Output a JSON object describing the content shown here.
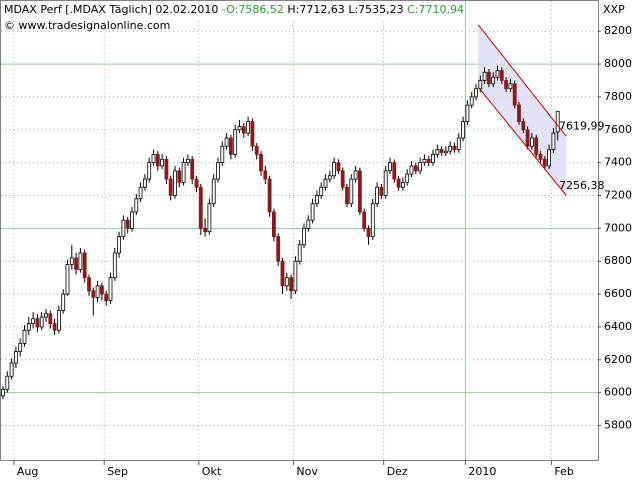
{
  "chart_data": {
    "type": "candlestick",
    "title": {
      "instrument": "MDAX Perf [.MDAX  Täglich] 02.02.2010",
      "open": "-O:7586,52",
      "high": "H:7712,63",
      "low": "L:7535,23",
      "close": "C:7710,94"
    },
    "source": "© www.tradesignalonline.com",
    "y_axis_label": "XXP",
    "categories": [
      null,
      null,
      null,
      "Aug",
      null,
      null,
      null,
      null,
      null,
      null,
      null,
      null,
      null,
      null,
      null,
      null,
      null,
      null,
      null,
      null,
      null,
      null,
      null,
      null,
      "Sep",
      null,
      null,
      null,
      null,
      null,
      null,
      null,
      null,
      null,
      null,
      null,
      null,
      null,
      null,
      null,
      null,
      null,
      null,
      null,
      null,
      null,
      "Okt",
      null,
      null,
      null,
      null,
      null,
      null,
      null,
      null,
      null,
      null,
      null,
      null,
      null,
      null,
      null,
      null,
      null,
      null,
      null,
      null,
      null,
      "Nov",
      null,
      null,
      null,
      null,
      null,
      null,
      null,
      null,
      null,
      null,
      null,
      null,
      null,
      null,
      null,
      null,
      null,
      null,
      null,
      null,
      "Dez",
      null,
      null,
      null,
      null,
      null,
      null,
      null,
      null,
      null,
      null,
      null,
      null,
      null,
      null,
      null,
      null,
      null,
      null,
      "2010",
      null,
      null,
      null,
      null,
      null,
      null,
      null,
      null,
      null,
      null,
      null,
      null,
      null,
      null,
      null,
      null,
      null,
      null,
      null,
      "Feb",
      null
    ],
    "ohlc": [
      [
        5980,
        6040,
        5960,
        6020
      ],
      [
        6020,
        6130,
        6000,
        6100
      ],
      [
        6100,
        6210,
        6080,
        6180
      ],
      [
        6180,
        6280,
        6150,
        6250
      ],
      [
        6250,
        6330,
        6220,
        6300
      ],
      [
        6300,
        6410,
        6280,
        6380
      ],
      [
        6380,
        6460,
        6350,
        6420
      ],
      [
        6420,
        6490,
        6390,
        6450
      ],
      [
        6450,
        6480,
        6370,
        6400
      ],
      [
        6400,
        6490,
        6380,
        6460
      ],
      [
        6460,
        6510,
        6430,
        6480
      ],
      [
        6480,
        6500,
        6390,
        6420
      ],
      [
        6420,
        6450,
        6350,
        6380
      ],
      [
        6380,
        6530,
        6360,
        6500
      ],
      [
        6500,
        6630,
        6480,
        6600
      ],
      [
        6600,
        6810,
        6590,
        6780
      ],
      [
        6780,
        6900,
        6750,
        6820
      ],
      [
        6820,
        6850,
        6720,
        6750
      ],
      [
        6750,
        6880,
        6730,
        6850
      ],
      [
        6850,
        6870,
        6670,
        6700
      ],
      [
        6700,
        6720,
        6590,
        6620
      ],
      [
        6620,
        6640,
        6470,
        6580
      ],
      [
        6580,
        6680,
        6550,
        6650
      ],
      [
        6650,
        6670,
        6560,
        6600
      ],
      [
        6600,
        6620,
        6530,
        6560
      ],
      [
        6560,
        6730,
        6540,
        6700
      ],
      [
        6700,
        6880,
        6680,
        6850
      ],
      [
        6850,
        6980,
        6820,
        6950
      ],
      [
        6950,
        7080,
        6930,
        7050
      ],
      [
        7050,
        7070,
        6970,
        7000
      ],
      [
        7000,
        7130,
        6980,
        7100
      ],
      [
        7100,
        7210,
        7080,
        7180
      ],
      [
        7180,
        7280,
        7160,
        7250
      ],
      [
        7250,
        7330,
        7230,
        7300
      ],
      [
        7300,
        7430,
        7280,
        7400
      ],
      [
        7400,
        7480,
        7380,
        7450
      ],
      [
        7450,
        7470,
        7350,
        7380
      ],
      [
        7380,
        7450,
        7360,
        7420
      ],
      [
        7420,
        7440,
        7270,
        7300
      ],
      [
        7300,
        7320,
        7170,
        7200
      ],
      [
        7200,
        7380,
        7180,
        7350
      ],
      [
        7350,
        7370,
        7250,
        7280
      ],
      [
        7280,
        7430,
        7260,
        7400
      ],
      [
        7400,
        7450,
        7380,
        7420
      ],
      [
        7420,
        7440,
        7270,
        7300
      ],
      [
        7300,
        7320,
        7220,
        7250
      ],
      [
        7250,
        7270,
        6960,
        7000
      ],
      [
        7000,
        7060,
        6950,
        6980
      ],
      [
        6980,
        7180,
        6960,
        7150
      ],
      [
        7150,
        7330,
        7130,
        7300
      ],
      [
        7300,
        7430,
        7280,
        7400
      ],
      [
        7400,
        7530,
        7380,
        7500
      ],
      [
        7500,
        7580,
        7480,
        7550
      ],
      [
        7550,
        7570,
        7420,
        7450
      ],
      [
        7450,
        7630,
        7430,
        7600
      ],
      [
        7600,
        7660,
        7580,
        7620
      ],
      [
        7620,
        7640,
        7550,
        7580
      ],
      [
        7580,
        7680,
        7560,
        7650
      ],
      [
        7650,
        7670,
        7470,
        7500
      ],
      [
        7500,
        7520,
        7420,
        7450
      ],
      [
        7450,
        7470,
        7320,
        7350
      ],
      [
        7350,
        7380,
        7270,
        7300
      ],
      [
        7300,
        7320,
        7070,
        7100
      ],
      [
        7100,
        7120,
        6920,
        6950
      ],
      [
        6950,
        6970,
        6770,
        6800
      ],
      [
        6800,
        6820,
        6600,
        6650
      ],
      [
        6650,
        6730,
        6620,
        6700
      ],
      [
        6700,
        6720,
        6570,
        6620
      ],
      [
        6620,
        6830,
        6600,
        6800
      ],
      [
        6800,
        6930,
        6780,
        6900
      ],
      [
        6900,
        7030,
        6880,
        7000
      ],
      [
        7000,
        7080,
        6980,
        7050
      ],
      [
        7050,
        7180,
        7030,
        7150
      ],
      [
        7150,
        7230,
        7130,
        7200
      ],
      [
        7200,
        7280,
        7180,
        7250
      ],
      [
        7250,
        7330,
        7230,
        7300
      ],
      [
        7300,
        7350,
        7280,
        7320
      ],
      [
        7320,
        7430,
        7300,
        7400
      ],
      [
        7400,
        7420,
        7330,
        7350
      ],
      [
        7350,
        7370,
        7230,
        7250
      ],
      [
        7250,
        7270,
        7130,
        7150
      ],
      [
        7150,
        7330,
        7130,
        7300
      ],
      [
        7300,
        7380,
        7280,
        7350
      ],
      [
        7350,
        7370,
        7080,
        7100
      ],
      [
        7100,
        7120,
        6980,
        7000
      ],
      [
        7000,
        7020,
        6900,
        6950
      ],
      [
        6950,
        7180,
        6930,
        7150
      ],
      [
        7150,
        7280,
        7130,
        7250
      ],
      [
        7250,
        7270,
        7180,
        7200
      ],
      [
        7200,
        7380,
        7180,
        7350
      ],
      [
        7350,
        7430,
        7330,
        7400
      ],
      [
        7400,
        7420,
        7280,
        7300
      ],
      [
        7300,
        7320,
        7230,
        7250
      ],
      [
        7250,
        7310,
        7230,
        7280
      ],
      [
        7280,
        7360,
        7260,
        7330
      ],
      [
        7330,
        7410,
        7310,
        7380
      ],
      [
        7380,
        7400,
        7330,
        7350
      ],
      [
        7350,
        7430,
        7330,
        7400
      ],
      [
        7400,
        7450,
        7380,
        7420
      ],
      [
        7420,
        7440,
        7380,
        7400
      ],
      [
        7400,
        7480,
        7380,
        7450
      ],
      [
        7450,
        7510,
        7430,
        7480
      ],
      [
        7480,
        7500,
        7440,
        7460
      ],
      [
        7460,
        7500,
        7440,
        7470
      ],
      [
        7470,
        7530,
        7450,
        7500
      ],
      [
        7500,
        7520,
        7460,
        7480
      ],
      [
        7480,
        7580,
        7460,
        7550
      ],
      [
        7550,
        7680,
        7530,
        7650
      ],
      [
        7650,
        7780,
        7630,
        7750
      ],
      [
        7750,
        7830,
        7730,
        7800
      ],
      [
        7800,
        7880,
        7780,
        7850
      ],
      [
        7850,
        7930,
        7830,
        7900
      ],
      [
        7900,
        7980,
        7880,
        7950
      ],
      [
        7950,
        7970,
        7860,
        7880
      ],
      [
        7880,
        7950,
        7860,
        7920
      ],
      [
        7920,
        7990,
        7900,
        7960
      ],
      [
        7960,
        7980,
        7880,
        7900
      ],
      [
        7900,
        7920,
        7830,
        7850
      ],
      [
        7850,
        7910,
        7830,
        7880
      ],
      [
        7880,
        7900,
        7730,
        7750
      ],
      [
        7750,
        7770,
        7630,
        7650
      ],
      [
        7650,
        7670,
        7580,
        7600
      ],
      [
        7600,
        7620,
        7480,
        7500
      ],
      [
        7500,
        7580,
        7480,
        7550
      ],
      [
        7550,
        7570,
        7430,
        7450
      ],
      [
        7450,
        7470,
        7400,
        7420
      ],
      [
        7420,
        7440,
        7360,
        7380
      ],
      [
        7380,
        7510,
        7360,
        7480
      ],
      [
        7480,
        7610,
        7460,
        7580
      ],
      [
        7586.52,
        7712.63,
        7535.23,
        7710.94
      ]
    ],
    "up_color": "#ffffff",
    "down_color": "#8b1a1a",
    "ylim": [
      5590,
      8390
    ],
    "yticks": [
      5800,
      6000,
      6200,
      6400,
      6600,
      6800,
      7000,
      7200,
      7400,
      7600,
      7800,
      8000,
      8200
    ],
    "major_grid_step": 1000,
    "major_x_index": 108,
    "grid": true,
    "channel": {
      "x": [
        110.5,
        131
      ],
      "upper": [
        8240,
        7560
      ],
      "lower": [
        7860,
        7200
      ],
      "color": "#cc0000",
      "fill": "#dcdcf5"
    },
    "annotations": [
      {
        "label": "7619,99",
        "value": 7619.99
      },
      {
        "label": "7256,38",
        "value": 7256.38
      }
    ]
  }
}
